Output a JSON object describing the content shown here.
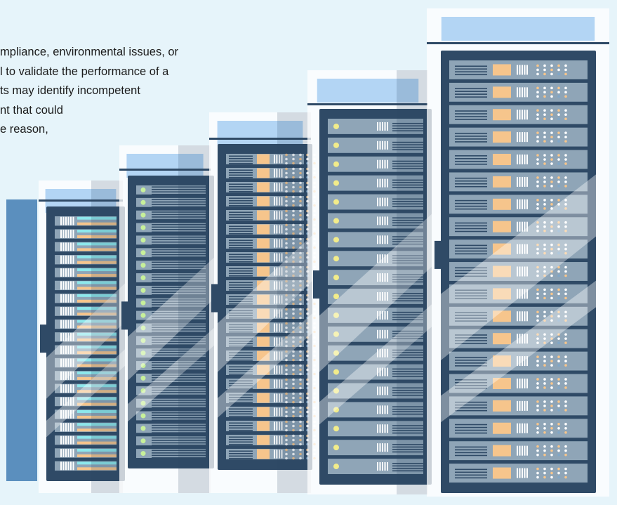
{
  "article": {
    "lines": [
      "mpliance, environmental issues, or",
      "l to validate the performance of a",
      "ts may identify incompetent",
      "nt that could",
      "e reason,"
    ]
  },
  "illustration": {
    "subject": "server-racks",
    "colors": {
      "background": "#e6f4fa",
      "frame": "#2f4a66",
      "unit": "#8fa5b7",
      "panel_bg": "#c7dcf3",
      "top_panel": "#b3d5f4",
      "accent_orange": "#f6c58c",
      "accent_cyan": "#8de8ec",
      "accent_yellow": "#f2ec8a",
      "accent_green": "#c7f09a",
      "side_bar": "#5b8fbe"
    }
  }
}
